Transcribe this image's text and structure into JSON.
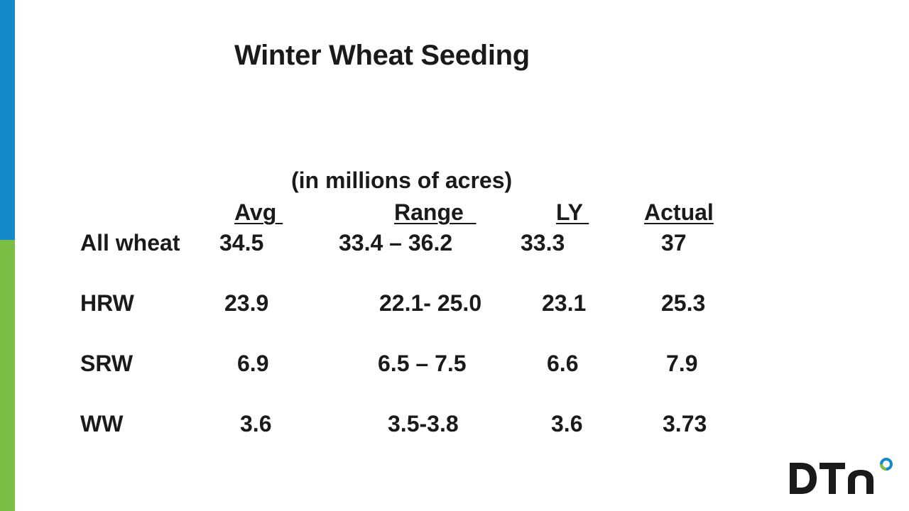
{
  "slide": {
    "title": "Winter Wheat Seeding",
    "subtitle": "(in millions of acres)",
    "headers": {
      "avg": "Avg ",
      "range": "Range  ",
      "ly": "LY ",
      "actual": "Actual"
    },
    "rows": [
      {
        "label": "All wheat",
        "avg": "34.5",
        "range": "33.4 – 36.2",
        "ly": "33.3",
        "actual": "37"
      },
      {
        "label": "HRW",
        "avg": "23.9",
        "range": "22.1- 25.0",
        "ly": "23.1",
        "actual": "25.3"
      },
      {
        "label": "SRW",
        "avg": "6.9",
        "range": "6.5 – 7.5",
        "ly": "6.6",
        "actual": "7.9"
      },
      {
        "label": "WW",
        "avg": "3.6",
        "range": "3.5-3.8",
        "ly": "3.6",
        "actual": "3.73"
      }
    ]
  },
  "logo": {
    "text": "DTN",
    "colors": {
      "dark": "#1a1a1a",
      "ring_blue": "#1589c9",
      "ring_green": "#7bbd45"
    }
  },
  "colors": {
    "bar_blue": "#1589c9",
    "bar_green": "#7bbd45",
    "text": "#1a1a1a"
  }
}
